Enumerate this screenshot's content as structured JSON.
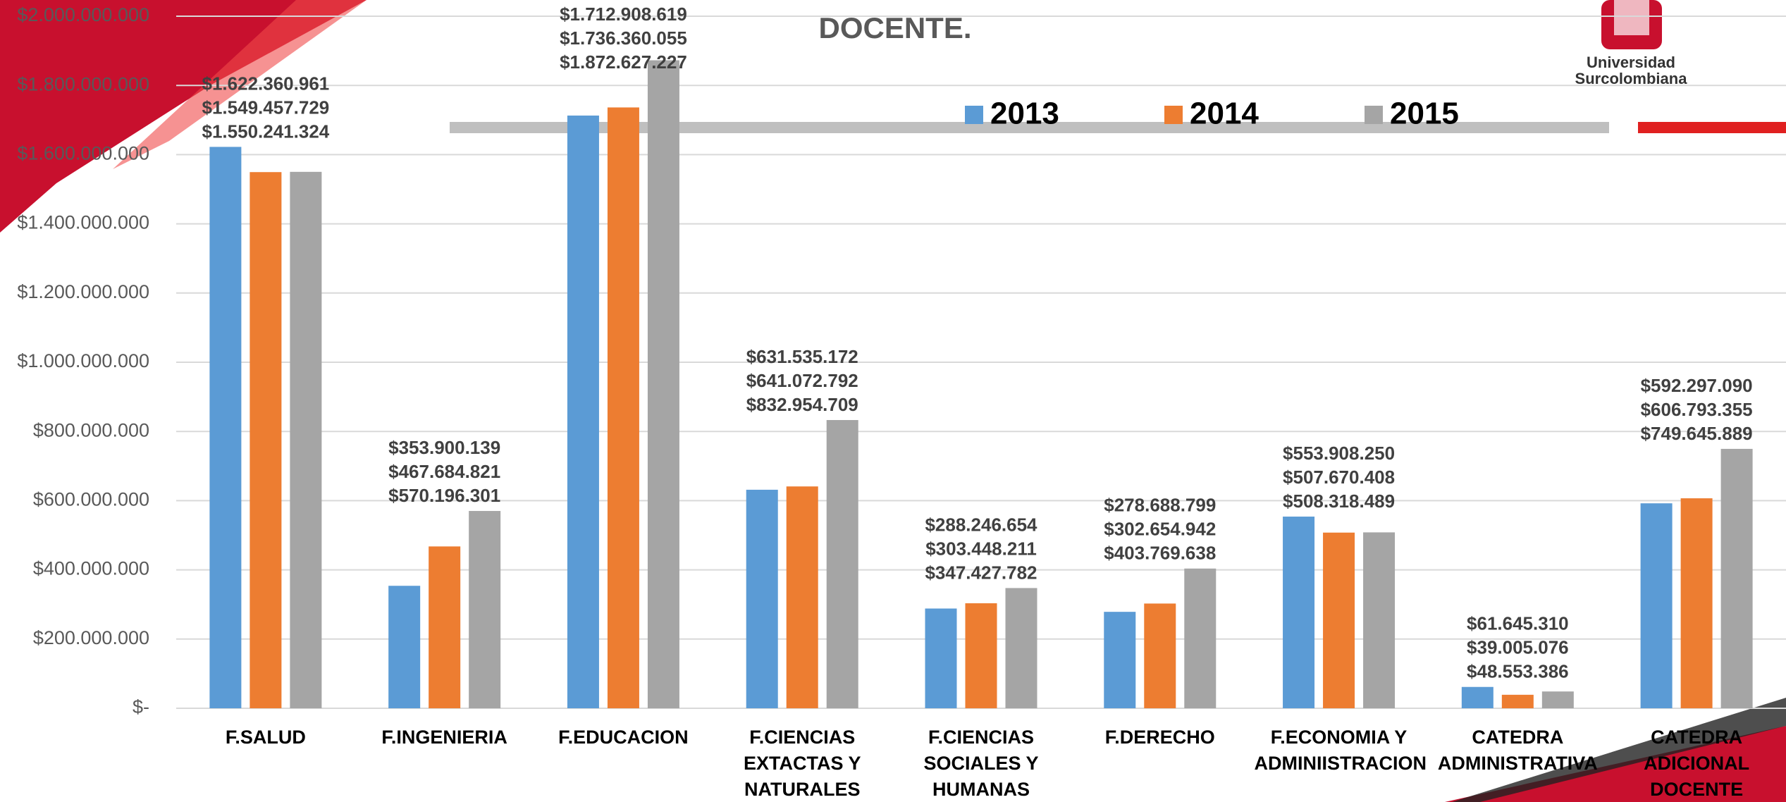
{
  "logo": {
    "line1": "Universidad",
    "line2": "Surcolombiana"
  },
  "chart_data": {
    "type": "bar",
    "title": "DOCENTE.",
    "categories": [
      "F.SALUD",
      "F.INGENIERIA",
      "F.EDUCACION",
      "F.CIENCIAS EXTACTAS Y NATURALES",
      "F.CIENCIAS SOCIALES Y HUMANAS",
      "F.DERECHO",
      "F.ECONOMIA Y ADMINIISTRACION",
      "CATEDRA ADMINISTRATIVA",
      "CATEDRA ADICIONAL DOCENTE"
    ],
    "series": [
      {
        "name": "2013",
        "color": "#5b9bd5",
        "values": [
          1622360961,
          353900139,
          1712908619,
          631535172,
          288246654,
          278688799,
          553908250,
          61645310,
          592297090
        ],
        "value_labels": [
          "$1.622.360.961",
          "$353.900.139",
          "$1.712.908.619",
          "$631.535.172",
          "$288.246.654",
          "$278.688.799",
          "$553.908.250",
          "$61.645.310",
          "$592.297.090"
        ]
      },
      {
        "name": "2014",
        "color": "#ed7d31",
        "values": [
          1549457729,
          467684821,
          1736360055,
          641072792,
          303448211,
          302654942,
          507670408,
          39005076,
          606793355
        ],
        "value_labels": [
          "$1.549.457.729",
          "$467.684.821",
          "$1.736.360.055",
          "$641.072.792",
          "$303.448.211",
          "$302.654.942",
          "$507.670.408",
          "$39.005.076",
          "$606.793.355"
        ]
      },
      {
        "name": "2015",
        "color": "#a5a5a5",
        "values": [
          1550241324,
          570196301,
          1872627227,
          832954709,
          347427782,
          403769638,
          508318489,
          48553386,
          749645889
        ],
        "value_labels": [
          "$1.550.241.324",
          "$570.196.301",
          "$1.872.627.227",
          "$832.954.709",
          "$347.427.782",
          "$403.769.638",
          "$508.318.489",
          "$48.553.386",
          "$749.645.889"
        ]
      }
    ],
    "ylim": [
      0,
      2000000000
    ],
    "yticks": [
      {
        "value": 0,
        "label": "$-"
      },
      {
        "value": 200000000,
        "label": "$200.000.000"
      },
      {
        "value": 400000000,
        "label": "$400.000.000"
      },
      {
        "value": 600000000,
        "label": "$600.000.000"
      },
      {
        "value": 800000000,
        "label": "$800.000.000"
      },
      {
        "value": 1000000000,
        "label": "$1.000.000.000"
      },
      {
        "value": 1200000000,
        "label": "$1.200.000.000"
      },
      {
        "value": 1400000000,
        "label": "$1.400.000.000"
      },
      {
        "value": 1600000000,
        "label": "$1.600.000.000"
      },
      {
        "value": 1800000000,
        "label": "$1.800.000.000"
      },
      {
        "value": 2000000000,
        "label": "$2.000.000.000"
      }
    ],
    "grid": true,
    "legend": "top"
  }
}
